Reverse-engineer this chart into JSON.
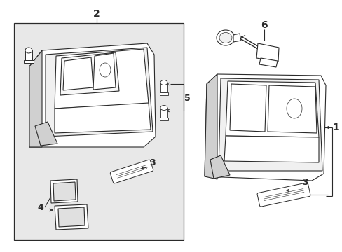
{
  "white": "#ffffff",
  "light_gray": "#e8e8e8",
  "mid_gray": "#d0d0d0",
  "line_color": "#2a2a2a",
  "bg": "#ffffff"
}
